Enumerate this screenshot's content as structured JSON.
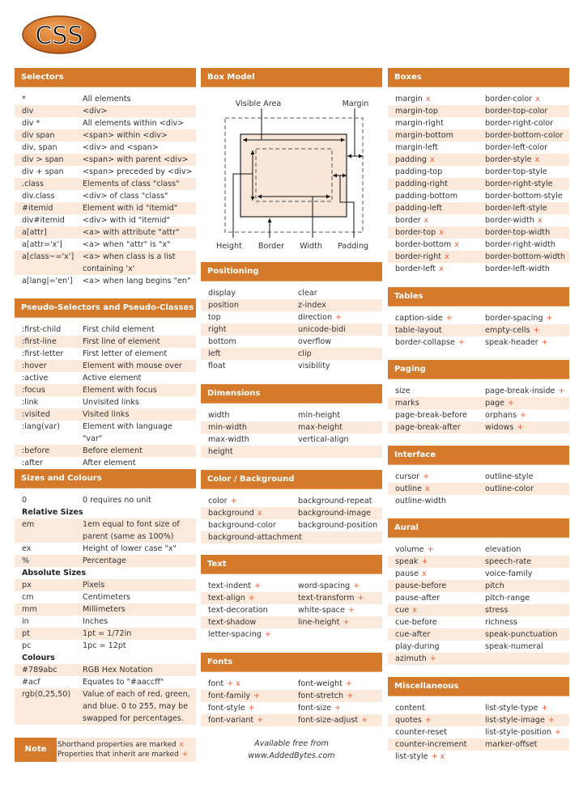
{
  "logo": "CSS",
  "colors": {
    "header": "#d57a2b",
    "stripe": "#fbe9dc",
    "marker": "#ef5b2f"
  },
  "selectors": {
    "title": "Selectors",
    "rows": [
      {
        "k": "*",
        "v": "All elements"
      },
      {
        "k": "div",
        "v": "<div>"
      },
      {
        "k": "div *",
        "v": "All elements within <div>"
      },
      {
        "k": "div span",
        "v": "<span> within <div>"
      },
      {
        "k": "div, span",
        "v": "<div> and <span>"
      },
      {
        "k": "div > span",
        "v": "<span> with parent <div>"
      },
      {
        "k": "div + span",
        "v": "<span> preceded by <div>"
      },
      {
        "k": ".class",
        "v": "Elements of class \"class\""
      },
      {
        "k": "div.class",
        "v": "<div> of class \"class\""
      },
      {
        "k": "#itemid",
        "v": "Element with id \"itemid\""
      },
      {
        "k": "div#itemid",
        "v": "<div> with id \"itemid\""
      },
      {
        "k": "a[attr]",
        "v": "<a> with attribute \"attr\""
      },
      {
        "k": "a[attr='x']",
        "v": "<a> when \"attr\" is \"x\""
      },
      {
        "k": "a[class~='x']",
        "v": "<a> when class is a list containing 'x'"
      },
      {
        "k": "a[lang|='en']",
        "v": "<a> when lang begins \"en\""
      }
    ]
  },
  "pseudo": {
    "title": "Pseudo-Selectors and Pseudo-Classes",
    "rows": [
      {
        "k": ":first-child",
        "v": "First child element"
      },
      {
        "k": ":first-line",
        "v": "First line of element"
      },
      {
        "k": ":first-letter",
        "v": "First letter of element"
      },
      {
        "k": ":hover",
        "v": "Element with mouse over"
      },
      {
        "k": ":active",
        "v": "Active element"
      },
      {
        "k": ":focus",
        "v": "Element with focus"
      },
      {
        "k": ":link",
        "v": "Unvisited links"
      },
      {
        "k": ":visited",
        "v": "Visited links"
      },
      {
        "k": ":lang(var)",
        "v": "Element with language \"var\""
      },
      {
        "k": ":before",
        "v": "Before element"
      },
      {
        "k": ":after",
        "v": "After element"
      }
    ]
  },
  "sizes": {
    "title": "Sizes and Colours",
    "rows": [
      {
        "k": "0",
        "v": "0 requires no unit"
      },
      {
        "heading": "Relative Sizes"
      },
      {
        "k": "em",
        "v": "1em equal to font size of parent (same as 100%)"
      },
      {
        "k": "ex",
        "v": "Height of lower case \"x\""
      },
      {
        "k": "%",
        "v": "Percentage"
      },
      {
        "heading": "Absolute Sizes"
      },
      {
        "k": "px",
        "v": "Pixels"
      },
      {
        "k": "cm",
        "v": "Centimeters"
      },
      {
        "k": "mm",
        "v": "Millimeters"
      },
      {
        "k": "in",
        "v": "Inches"
      },
      {
        "k": "pt",
        "v": "1pt = 1/72in"
      },
      {
        "k": "pc",
        "v": "1pc = 12pt"
      },
      {
        "heading": "Colours"
      },
      {
        "k": "#789abc",
        "v": "RGB Hex Notation"
      },
      {
        "k": "#acf",
        "v": "Equates to \"#aaccff\""
      },
      {
        "k": "rgb(0,25,50)",
        "v": "Value of each of red, green, and blue. 0 to 255, may be swapped for percentages."
      }
    ]
  },
  "note": {
    "label": "Note",
    "line1": "Shorthand properties are marked",
    "mark1": "x",
    "line2": "Properties that inherit are marked",
    "mark2": "+"
  },
  "box_model": {
    "title": "Box Model",
    "labels": {
      "visible_area": "Visible Area",
      "margin": "Margin",
      "height": "Height",
      "border": "Border",
      "width": "Width",
      "padding": "Padding"
    }
  },
  "positioning": {
    "title": "Positioning",
    "rows": [
      [
        {
          "t": "display"
        },
        {
          "t": "clear"
        }
      ],
      [
        {
          "t": "position"
        },
        {
          "t": "z-index"
        }
      ],
      [
        {
          "t": "top"
        },
        {
          "t": "direction",
          "m": "+"
        }
      ],
      [
        {
          "t": "right"
        },
        {
          "t": "unicode-bidi"
        }
      ],
      [
        {
          "t": "bottom"
        },
        {
          "t": "overflow"
        }
      ],
      [
        {
          "t": "left"
        },
        {
          "t": "clip"
        }
      ],
      [
        {
          "t": "float"
        },
        {
          "t": "visibility"
        }
      ]
    ]
  },
  "dimensions": {
    "title": "Dimensions",
    "rows": [
      [
        {
          "t": "width"
        },
        {
          "t": "min-height"
        }
      ],
      [
        {
          "t": "min-width"
        },
        {
          "t": "max-height"
        }
      ],
      [
        {
          "t": "max-width"
        },
        {
          "t": "vertical-align"
        }
      ],
      [
        {
          "t": "height"
        }
      ]
    ]
  },
  "colorbg": {
    "title": "Color / Background",
    "rows": [
      [
        {
          "t": "color",
          "m": "+"
        },
        {
          "t": "background-repeat"
        }
      ],
      [
        {
          "t": "background",
          "m": "x"
        },
        {
          "t": "background-image"
        }
      ],
      [
        {
          "t": "background-color"
        },
        {
          "t": "background-position"
        }
      ],
      [
        {
          "t": "background-attachment"
        }
      ]
    ]
  },
  "text": {
    "title": "Text",
    "rows": [
      [
        {
          "t": "text-indent",
          "m": "+"
        },
        {
          "t": "word-spacing",
          "m": "+"
        }
      ],
      [
        {
          "t": "text-align",
          "m": "+"
        },
        {
          "t": "text-transform",
          "m": "+"
        }
      ],
      [
        {
          "t": "text-decoration"
        },
        {
          "t": "white-space",
          "m": "+"
        }
      ],
      [
        {
          "t": "text-shadow"
        },
        {
          "t": "line-height",
          "m": "+"
        }
      ],
      [
        {
          "t": "letter-spacing",
          "m": "+"
        }
      ]
    ]
  },
  "fonts": {
    "title": "Fonts",
    "rows": [
      [
        {
          "t": "font",
          "m": "+ x"
        },
        {
          "t": "font-weight",
          "m": "+"
        }
      ],
      [
        {
          "t": "font-family",
          "m": "+"
        },
        {
          "t": "font-stretch",
          "m": "+"
        }
      ],
      [
        {
          "t": "font-style",
          "m": "+"
        },
        {
          "t": "font-size",
          "m": "+"
        }
      ],
      [
        {
          "t": "font-variant",
          "m": "+"
        },
        {
          "t": "font-size-adjust",
          "m": "+"
        }
      ]
    ]
  },
  "footer": {
    "line1": "Available free from",
    "line2": "www.AddedBytes.com"
  },
  "boxes": {
    "title": "Boxes",
    "rows": [
      [
        {
          "t": "margin",
          "m": "x"
        },
        {
          "t": "border-color",
          "m": "x"
        }
      ],
      [
        {
          "t": "margin-top"
        },
        {
          "t": "border-top-color"
        }
      ],
      [
        {
          "t": "margin-right"
        },
        {
          "t": "border-right-color"
        }
      ],
      [
        {
          "t": "margin-bottom"
        },
        {
          "t": "border-bottom-color"
        }
      ],
      [
        {
          "t": "margin-left"
        },
        {
          "t": "border-left-color"
        }
      ],
      [
        {
          "t": "padding",
          "m": "x"
        },
        {
          "t": "border-style",
          "m": "x"
        }
      ],
      [
        {
          "t": "padding-top"
        },
        {
          "t": "border-top-style"
        }
      ],
      [
        {
          "t": "padding-right"
        },
        {
          "t": "border-right-style"
        }
      ],
      [
        {
          "t": "padding-bottom"
        },
        {
          "t": "border-bottom-style"
        }
      ],
      [
        {
          "t": "padding-left"
        },
        {
          "t": "border-left-style"
        }
      ],
      [
        {
          "t": "border",
          "m": "x"
        },
        {
          "t": "border-width",
          "m": "x"
        }
      ],
      [
        {
          "t": "border-top",
          "m": "x"
        },
        {
          "t": "border-top-width"
        }
      ],
      [
        {
          "t": "border-bottom",
          "m": "x"
        },
        {
          "t": "border-right-width"
        }
      ],
      [
        {
          "t": "border-right",
          "m": "x"
        },
        {
          "t": "border-bottom-width"
        }
      ],
      [
        {
          "t": "border-left",
          "m": "x"
        },
        {
          "t": "border-left-width"
        }
      ]
    ]
  },
  "tables": {
    "title": "Tables",
    "rows": [
      [
        {
          "t": "caption-side",
          "m": "+"
        },
        {
          "t": "border-spacing",
          "m": "+"
        }
      ],
      [
        {
          "t": "table-layout"
        },
        {
          "t": "empty-cells",
          "m": "+"
        }
      ],
      [
        {
          "t": "border-collapse",
          "m": "+"
        },
        {
          "t": "speak-header",
          "m": "+"
        }
      ]
    ]
  },
  "paging": {
    "title": "Paging",
    "rows": [
      [
        {
          "t": "size"
        },
        {
          "t": "page-break-inside",
          "m": "+"
        }
      ],
      [
        {
          "t": "marks"
        },
        {
          "t": "page",
          "m": "+"
        }
      ],
      [
        {
          "t": "page-break-before"
        },
        {
          "t": "orphans",
          "m": "+"
        }
      ],
      [
        {
          "t": "page-break-after"
        },
        {
          "t": "widows",
          "m": "+"
        }
      ]
    ]
  },
  "interface": {
    "title": "Interface",
    "rows": [
      [
        {
          "t": "cursor",
          "m": "+"
        },
        {
          "t": "outline-style"
        }
      ],
      [
        {
          "t": "outline",
          "m": "x"
        },
        {
          "t": "outline-color"
        }
      ],
      [
        {
          "t": "outline-width"
        }
      ]
    ]
  },
  "aural": {
    "title": "Aural",
    "rows": [
      [
        {
          "t": "volume",
          "m": "+"
        },
        {
          "t": "elevation"
        }
      ],
      [
        {
          "t": "speak",
          "m": "+"
        },
        {
          "t": "speech-rate"
        }
      ],
      [
        {
          "t": "pause",
          "m": "x"
        },
        {
          "t": "voice-family"
        }
      ],
      [
        {
          "t": "pause-before"
        },
        {
          "t": "pitch"
        }
      ],
      [
        {
          "t": "pause-after"
        },
        {
          "t": "pitch-range"
        }
      ],
      [
        {
          "t": "cue",
          "m": "x"
        },
        {
          "t": "stress"
        }
      ],
      [
        {
          "t": "cue-before"
        },
        {
          "t": "richness"
        }
      ],
      [
        {
          "t": "cue-after"
        },
        {
          "t": "speak-punctuation"
        }
      ],
      [
        {
          "t": "play-during"
        },
        {
          "t": "speak-numeral"
        }
      ],
      [
        {
          "t": "azimuth",
          "m": "+"
        }
      ]
    ]
  },
  "misc": {
    "title": "Miscellaneous",
    "rows": [
      [
        {
          "t": "content"
        },
        {
          "t": "list-style-type",
          "m": "+"
        }
      ],
      [
        {
          "t": "quotes",
          "m": "+"
        },
        {
          "t": "list-style-image",
          "m": "+"
        }
      ],
      [
        {
          "t": "counter-reset"
        },
        {
          "t": "list-style-position",
          "m": "+"
        }
      ],
      [
        {
          "t": "counter-increment"
        },
        {
          "t": "marker-offset"
        }
      ],
      [
        {
          "t": "list-style",
          "m": "+ x"
        }
      ]
    ]
  }
}
